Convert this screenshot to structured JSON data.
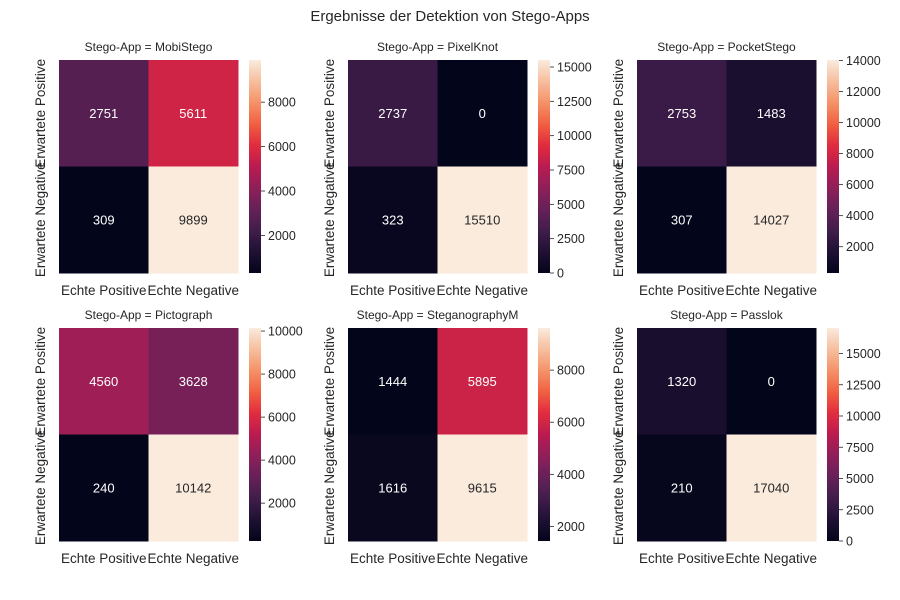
{
  "title": "Ergebnisse der Detektion von Stego-Apps",
  "chart_data": [
    {
      "type": "heatmap",
      "title": "Stego-App = MobiStego",
      "xticklabels": [
        "Echte Positive",
        "Echte Negative"
      ],
      "yticklabels": [
        "Erwartete Positive",
        "Erwartete Negative"
      ],
      "values": [
        [
          2751,
          5611
        ],
        [
          309,
          9899
        ]
      ],
      "colorbar": {
        "range": [
          309,
          9899
        ],
        "ticks": [
          2000,
          4000,
          6000,
          8000
        ]
      }
    },
    {
      "type": "heatmap",
      "title": "Stego-App = PixelKnot",
      "xticklabels": [
        "Echte Positive",
        "Echte Negative"
      ],
      "yticklabels": [
        "Erwartete Positive",
        "Erwartete Negative"
      ],
      "values": [
        [
          2737,
          0
        ],
        [
          323,
          15510
        ]
      ],
      "colorbar": {
        "range": [
          0,
          15510
        ],
        "ticks": [
          0,
          2500,
          5000,
          7500,
          10000,
          12500,
          15000
        ]
      }
    },
    {
      "type": "heatmap",
      "title": "Stego-App = PocketStego",
      "xticklabels": [
        "Echte Positive",
        "Echte Negative"
      ],
      "yticklabels": [
        "Erwartete Positive",
        "Erwartete Negative"
      ],
      "values": [
        [
          2753,
          1483
        ],
        [
          307,
          14027
        ]
      ],
      "colorbar": {
        "range": [
          307,
          14027
        ],
        "ticks": [
          2000,
          4000,
          6000,
          8000,
          10000,
          12000,
          14000
        ]
      }
    },
    {
      "type": "heatmap",
      "title": "Stego-App = Pictograph",
      "xticklabels": [
        "Echte Positive",
        "Echte Negative"
      ],
      "yticklabels": [
        "Erwartete Positive",
        "Erwartete Negative"
      ],
      "values": [
        [
          4560,
          3628
        ],
        [
          240,
          10142
        ]
      ],
      "colorbar": {
        "range": [
          240,
          10142
        ],
        "ticks": [
          2000,
          4000,
          6000,
          8000,
          10000
        ]
      }
    },
    {
      "type": "heatmap",
      "title": "Stego-App = SteganographyM",
      "xticklabels": [
        "Echte Positive",
        "Echte Negative"
      ],
      "yticklabels": [
        "Erwartete Positive",
        "Erwartete Negative"
      ],
      "values": [
        [
          1444,
          5895
        ],
        [
          1616,
          9615
        ]
      ],
      "colorbar": {
        "range": [
          1444,
          9615
        ],
        "ticks": [
          2000,
          4000,
          6000,
          8000
        ]
      }
    },
    {
      "type": "heatmap",
      "title": "Stego-App = Passlok",
      "xticklabels": [
        "Echte Positive",
        "Echte Negative"
      ],
      "yticklabels": [
        "Erwartete Positive",
        "Erwartete Negative"
      ],
      "values": [
        [
          1320,
          0
        ],
        [
          210,
          17040
        ]
      ],
      "colorbar": {
        "range": [
          0,
          17040
        ],
        "ticks": [
          0,
          2500,
          5000,
          7500,
          10000,
          12500,
          15000
        ]
      }
    }
  ]
}
